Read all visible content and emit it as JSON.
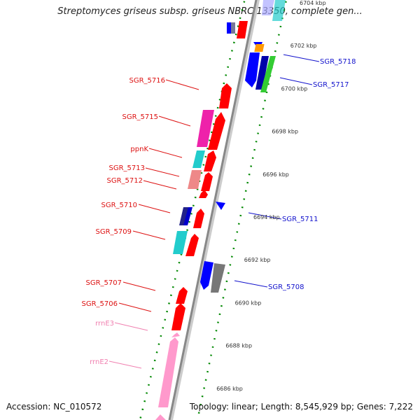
{
  "title": "Streptomyces griseus subsp. griseus NBRC 13350, complete gen...",
  "accession": "Accession: NC_010572",
  "summary": "Topology: linear; Length: 8,545,929 bp; Genes: 7,222",
  "ticks": [
    {
      "label": "6704 kbp",
      "pos": 6704
    },
    {
      "label": "6702 kbp",
      "pos": 6702
    },
    {
      "label": "6700 kbp",
      "pos": 6700
    },
    {
      "label": "6698 kbp",
      "pos": 6698
    },
    {
      "label": "6696 kbp",
      "pos": 6696
    },
    {
      "label": "6694 kbp",
      "pos": 6694
    },
    {
      "label": "6692 kbp",
      "pos": 6692
    },
    {
      "label": "6690 kbp",
      "pos": 6690
    },
    {
      "label": "6688 kbp",
      "pos": 6688
    },
    {
      "label": "6686 kbp",
      "pos": 6686
    }
  ],
  "left_labels": [
    {
      "text": "SGR_5716",
      "color": "#dd1111"
    },
    {
      "text": "SGR_5715",
      "color": "#dd1111"
    },
    {
      "text": "ppnK",
      "color": "#dd1111"
    },
    {
      "text": "SGR_5713",
      "color": "#dd1111"
    },
    {
      "text": "SGR_5712",
      "color": "#dd1111"
    },
    {
      "text": "SGR_5710",
      "color": "#dd1111"
    },
    {
      "text": "SGR_5709",
      "color": "#dd1111"
    },
    {
      "text": "SGR_5707",
      "color": "#dd1111"
    },
    {
      "text": "SGR_5706",
      "color": "#dd1111"
    },
    {
      "text": "rrnE3",
      "color": "#f080b0"
    },
    {
      "text": "rrnE2",
      "color": "#f080b0"
    }
  ],
  "right_labels": [
    {
      "text": "SGR_5718",
      "color": "#1111cc"
    },
    {
      "text": "SGR_5717",
      "color": "#1111cc"
    },
    {
      "text": "SGR_5711",
      "color": "#1111cc"
    },
    {
      "text": "SGR_5708",
      "color": "#1111cc"
    }
  ],
  "colors": {
    "forward_gene": "#ff0000",
    "reverse_gene": "#0000ff",
    "cog_magenta": "#ee22aa",
    "cog_cyan": "#22cccc",
    "cog_salmon": "#ee8888",
    "cog_navy": "#222288",
    "cog_gray": "#777777",
    "cog_orange": "#ff9900",
    "cog_green": "#33cc33",
    "rrna": "#ff99cc",
    "axis": "#888888",
    "tick_dots": "#008800"
  }
}
